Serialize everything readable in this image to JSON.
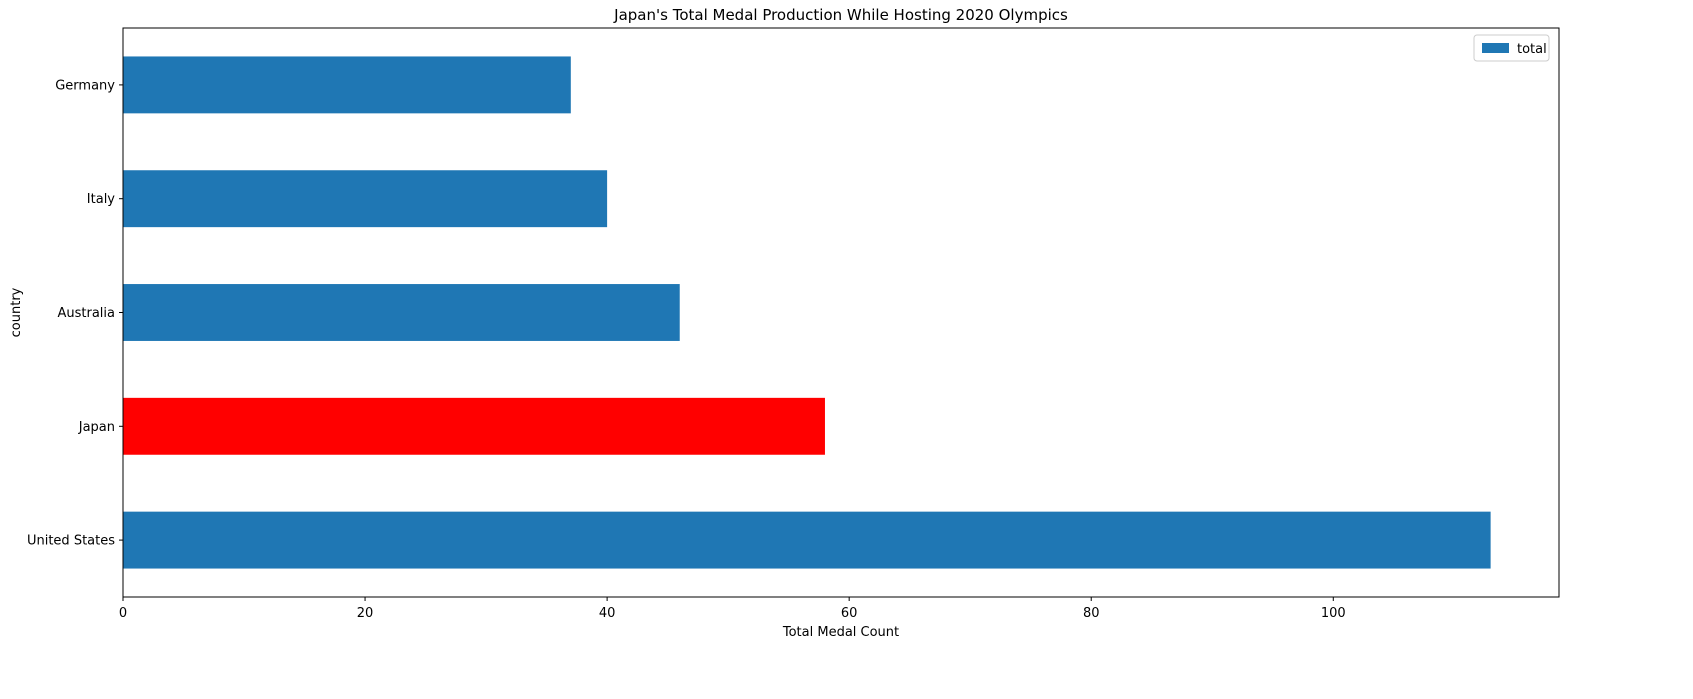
{
  "chart_data": {
    "type": "bar",
    "orientation": "horizontal",
    "title": "Japan's Total Medal Production While Hosting 2020 Olympics",
    "xlabel": "Total Medal Count",
    "ylabel": "country",
    "categories": [
      "United States",
      "Japan",
      "Australia",
      "Italy",
      "Germany"
    ],
    "series": [
      {
        "name": "total",
        "values": [
          113,
          58,
          46,
          40,
          37
        ],
        "color": "#1f77b4",
        "highlight": {
          "category": "Japan",
          "color": "#ff0000"
        }
      }
    ],
    "xlim": [
      0,
      118.65
    ],
    "xticks": [
      0,
      20,
      40,
      60,
      80,
      100
    ],
    "grid": false,
    "legend": {
      "position": "top-right",
      "entries": [
        "total"
      ]
    }
  }
}
